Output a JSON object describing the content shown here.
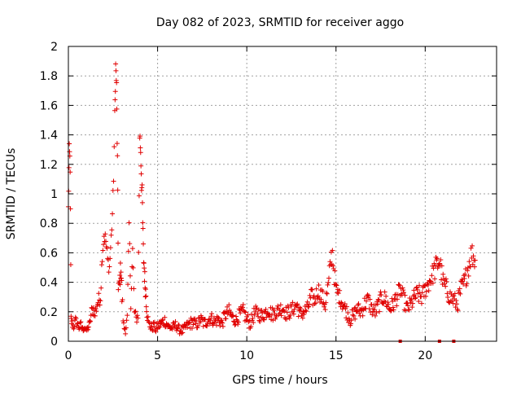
{
  "chart_data": {
    "type": "scatter",
    "title": "Day 082 of 2023, SRMTID for receiver aggo",
    "xlabel": "GPS time / hours",
    "ylabel": "SRMTID / TECUs",
    "xlim": [
      0,
      24
    ],
    "ylim": [
      0,
      2
    ],
    "x_ticks": [
      0,
      5,
      10,
      15,
      20
    ],
    "y_ticks": [
      0,
      0.2,
      0.4,
      0.6,
      0.8,
      1,
      1.2,
      1.4,
      1.6,
      1.8,
      2
    ],
    "x_tick_labels": [
      "0",
      "5",
      "10",
      "15",
      "20"
    ],
    "y_tick_labels": [
      "0",
      "0.2",
      "0.4",
      "0.6",
      "0.8",
      "1",
      "1.2",
      "1.4",
      "1.6",
      "1.8",
      "2"
    ],
    "grid": true,
    "marker": "+",
    "color": "#e00000",
    "series": [
      {
        "name": "SRMTID",
        "x": [
          0.0,
          0.05,
          0.1,
          0.15,
          0.2,
          0.3,
          0.4,
          0.5,
          0.6,
          0.7,
          0.8,
          0.9,
          1.0,
          1.1,
          1.2,
          1.3,
          1.4,
          1.5,
          1.6,
          1.7,
          1.8,
          1.9,
          2.0,
          2.1,
          2.2,
          2.3,
          2.4,
          2.5,
          2.6,
          2.65,
          2.7,
          2.75,
          2.8,
          2.85,
          2.9,
          2.95,
          3.0,
          3.1,
          3.2,
          3.3,
          3.4,
          3.5,
          3.6,
          3.7,
          3.8,
          3.9,
          4.0,
          4.05,
          4.1,
          4.15,
          4.2,
          4.25,
          4.3,
          4.35,
          4.4,
          4.5,
          4.6,
          4.7,
          4.8,
          4.9,
          5.0,
          5.2,
          5.4,
          5.6,
          5.8,
          6.0,
          6.2,
          6.4,
          6.6,
          6.8,
          7.0,
          7.2,
          7.4,
          7.6,
          7.8,
          8.0,
          8.2,
          8.4,
          8.6,
          8.8,
          9.0,
          9.2,
          9.4,
          9.6,
          9.8,
          10.0,
          10.2,
          10.4,
          10.6,
          10.8,
          11.0,
          11.2,
          11.4,
          11.6,
          11.8,
          12.0,
          12.2,
          12.4,
          12.6,
          12.8,
          13.0,
          13.2,
          13.4,
          13.6,
          13.8,
          14.0,
          14.2,
          14.4,
          14.6,
          14.7,
          14.8,
          14.9,
          15.0,
          15.2,
          15.4,
          15.6,
          15.8,
          16.0,
          16.2,
          16.4,
          16.6,
          16.8,
          17.0,
          17.2,
          17.4,
          17.6,
          17.8,
          18.0,
          18.2,
          18.4,
          18.6,
          18.8,
          19.0,
          19.2,
          19.4,
          19.6,
          19.8,
          20.0,
          20.2,
          20.4,
          20.6,
          20.8,
          21.0,
          21.2,
          21.4,
          21.6,
          21.8,
          22.0,
          22.2,
          22.4,
          22.6,
          22.8
        ],
        "y": [
          0.9,
          1.3,
          1.2,
          0.15,
          0.12,
          0.1,
          0.14,
          0.12,
          0.09,
          0.11,
          0.08,
          0.1,
          0.07,
          0.09,
          0.12,
          0.2,
          0.22,
          0.18,
          0.25,
          0.28,
          0.3,
          0.6,
          0.72,
          0.68,
          0.55,
          0.5,
          0.7,
          0.95,
          1.5,
          1.87,
          1.73,
          1.2,
          0.4,
          0.35,
          0.45,
          0.5,
          0.3,
          0.1,
          0.08,
          0.15,
          0.8,
          0.3,
          0.6,
          0.2,
          0.15,
          0.18,
          1.4,
          1.3,
          1.1,
          0.9,
          0.6,
          0.5,
          0.38,
          0.32,
          0.2,
          0.12,
          0.1,
          0.09,
          0.11,
          0.08,
          0.1,
          0.12,
          0.14,
          0.1,
          0.09,
          0.11,
          0.08,
          0.07,
          0.1,
          0.12,
          0.13,
          0.11,
          0.15,
          0.12,
          0.14,
          0.16,
          0.13,
          0.15,
          0.12,
          0.18,
          0.2,
          0.16,
          0.14,
          0.18,
          0.2,
          0.15,
          0.12,
          0.18,
          0.2,
          0.17,
          0.19,
          0.22,
          0.18,
          0.2,
          0.21,
          0.23,
          0.19,
          0.2,
          0.22,
          0.25,
          0.18,
          0.2,
          0.22,
          0.3,
          0.28,
          0.35,
          0.3,
          0.25,
          0.4,
          0.55,
          0.6,
          0.45,
          0.35,
          0.3,
          0.25,
          0.2,
          0.15,
          0.18,
          0.22,
          0.2,
          0.25,
          0.28,
          0.22,
          0.2,
          0.25,
          0.3,
          0.28,
          0.22,
          0.25,
          0.3,
          0.35,
          0.28,
          0.22,
          0.25,
          0.3,
          0.32,
          0.3,
          0.35,
          0.4,
          0.45,
          0.5,
          0.55,
          0.4,
          0.35,
          0.3,
          0.28,
          0.25,
          0.35,
          0.4,
          0.5,
          0.6,
          0.55
        ],
        "y_scatter": [
          0.04,
          0.04,
          0.08,
          0.03,
          0.03,
          0.03,
          0.03,
          0.03,
          0.02,
          0.03,
          0.02,
          0.03,
          0.02,
          0.02,
          0.03,
          0.04,
          0.04,
          0.04,
          0.05,
          0.05,
          0.05,
          0.06,
          0.05,
          0.06,
          0.05,
          0.05,
          0.06,
          0.08,
          0.08,
          0.04,
          0.04,
          0.1,
          0.08,
          0.08,
          0.08,
          0.06,
          0.08,
          0.04,
          0.03,
          0.04,
          0.02,
          0.08,
          0.1,
          0.05,
          0.04,
          0.04,
          0.06,
          0.08,
          0.1,
          0.1,
          0.1,
          0.08,
          0.06,
          0.06,
          0.05,
          0.03,
          0.03,
          0.03,
          0.03,
          0.03,
          0.03,
          0.04,
          0.04,
          0.03,
          0.03,
          0.03,
          0.03,
          0.03,
          0.03,
          0.04,
          0.04,
          0.03,
          0.04,
          0.04,
          0.04,
          0.04,
          0.04,
          0.04,
          0.04,
          0.05,
          0.05,
          0.04,
          0.04,
          0.05,
          0.05,
          0.05,
          0.04,
          0.05,
          0.05,
          0.05,
          0.05,
          0.05,
          0.05,
          0.05,
          0.05,
          0.05,
          0.05,
          0.05,
          0.05,
          0.05,
          0.05,
          0.05,
          0.05,
          0.06,
          0.06,
          0.06,
          0.06,
          0.06,
          0.07,
          0.08,
          0.08,
          0.07,
          0.06,
          0.05,
          0.05,
          0.05,
          0.05,
          0.05,
          0.05,
          0.05,
          0.06,
          0.06,
          0.05,
          0.05,
          0.06,
          0.06,
          0.06,
          0.05,
          0.06,
          0.06,
          0.06,
          0.06,
          0.05,
          0.06,
          0.06,
          0.07,
          0.06,
          0.06,
          0.07,
          0.07,
          0.08,
          0.08,
          0.07,
          0.07,
          0.06,
          0.06,
          0.06,
          0.07,
          0.07,
          0.08,
          0.08,
          0.08
        ]
      }
    ],
    "zero_markers_x": [
      18.6,
      20.8,
      21.6
    ]
  }
}
